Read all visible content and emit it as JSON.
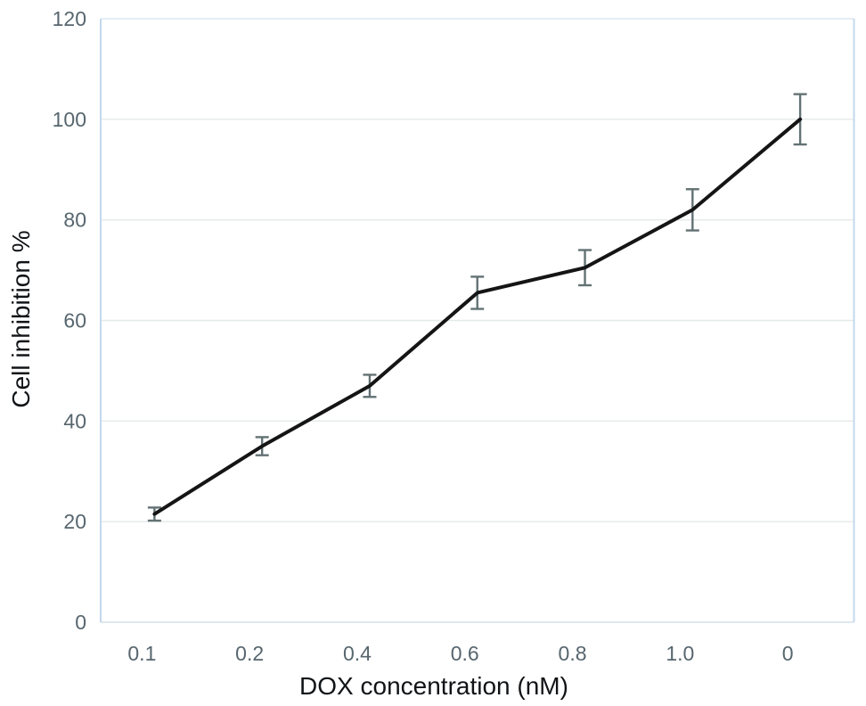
{
  "chart_data": {
    "type": "line",
    "title": "",
    "xlabel": "DOX concentration (nM)",
    "ylabel": "Cell inhibition %",
    "categories": [
      "0.1",
      "0.2",
      "0.4",
      "0.6",
      "0.8",
      "1.0",
      "0"
    ],
    "series": [
      {
        "name": "Cell inhibition %",
        "values": [
          21.5,
          35,
          47,
          65.5,
          70.5,
          82,
          100
        ],
        "errors": [
          1.3,
          1.8,
          2.2,
          3.2,
          3.5,
          4.1,
          5
        ]
      }
    ],
    "ylim": [
      0,
      120
    ],
    "yticks": [
      0,
      20,
      40,
      60,
      80,
      100,
      120
    ],
    "grid": "horizontal",
    "legend": "none",
    "markers": "none",
    "colors": {
      "line": "#151515",
      "error_bar": "#637274",
      "gridline": "#e4e9ea",
      "frame_side": "#c3d9ee",
      "frame_topbottom": "#dde8f0",
      "tick_label": "#57666e",
      "axis_title": "#111417"
    }
  }
}
